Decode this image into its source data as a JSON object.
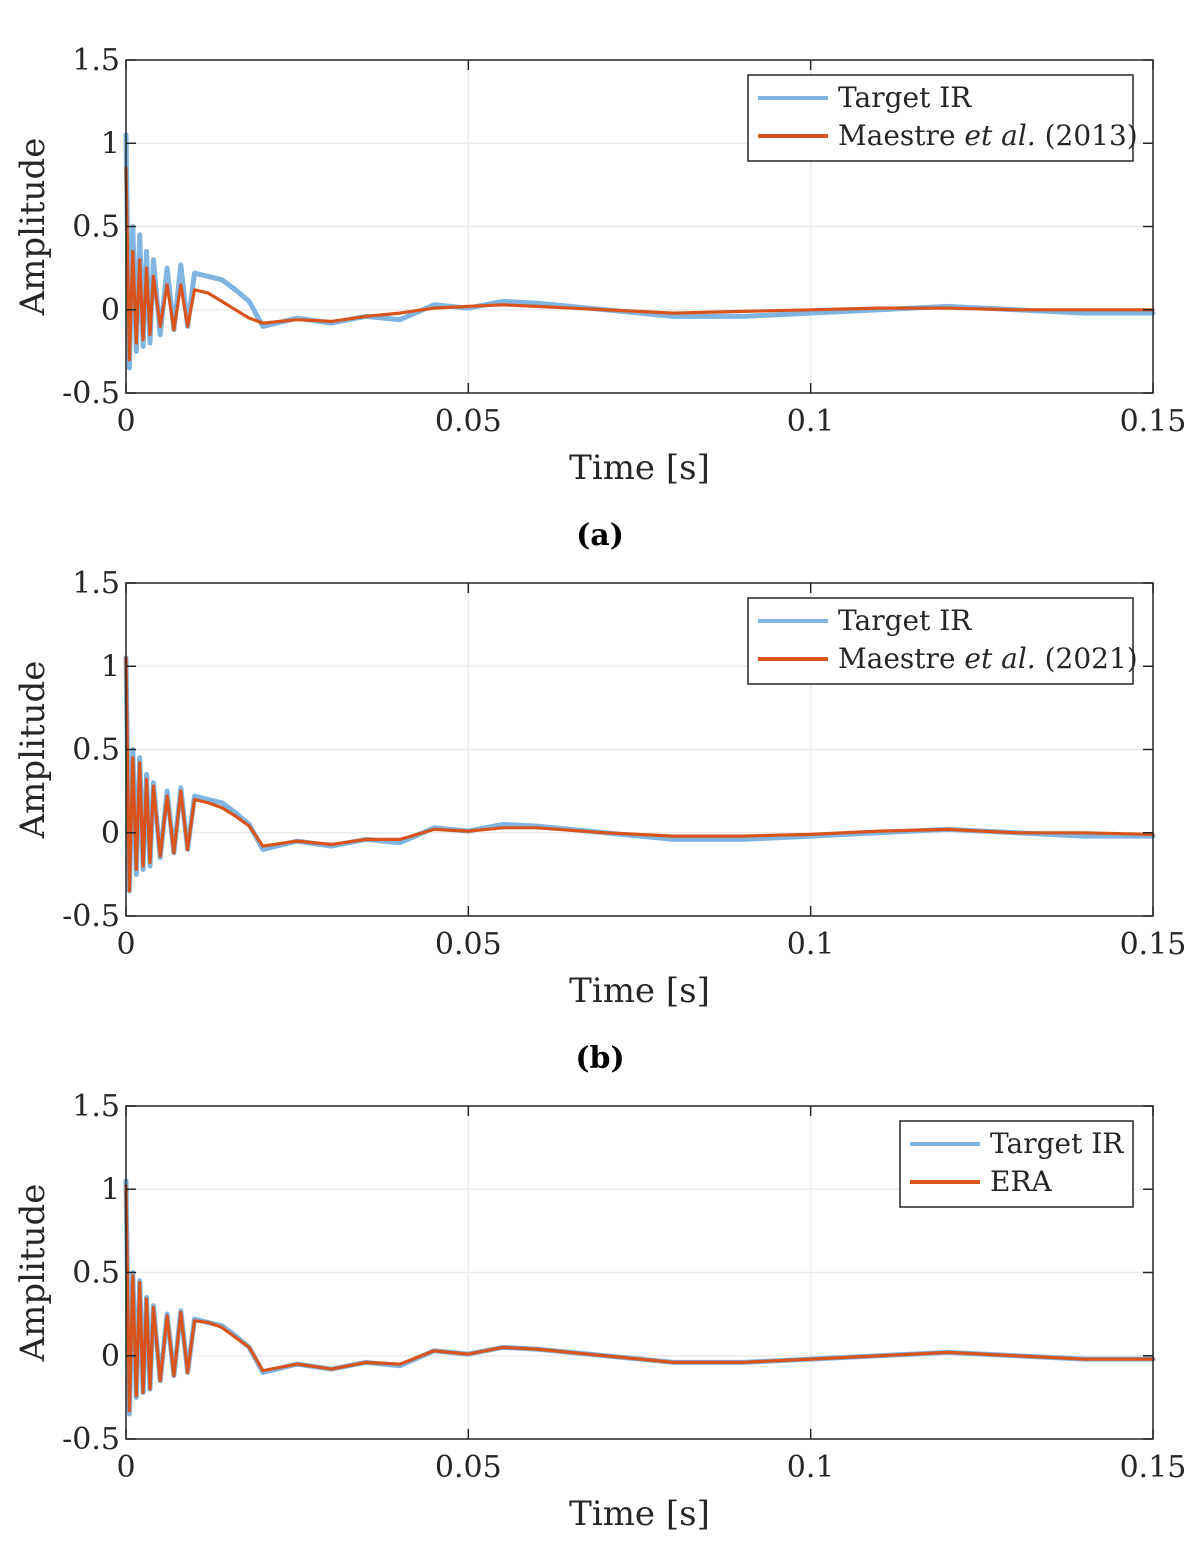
{
  "chart_data": [
    {
      "type": "line",
      "caption": "(a)",
      "xlabel": "Time [s]",
      "ylabel": "Amplitude",
      "xlim": [
        0,
        0.15
      ],
      "ylim": [
        -0.5,
        1.5
      ],
      "xticks": [
        "0",
        "0.05",
        "0.1",
        "0.15"
      ],
      "yticks": [
        "-0.5",
        "0",
        "0.5",
        "1",
        "1.5"
      ],
      "grid": true,
      "legend_position": "top-right",
      "series": [
        {
          "name": "Target IR",
          "color": "#7fb5e0",
          "x": [
            0,
            0.0005,
            0.001,
            0.0015,
            0.002,
            0.0025,
            0.003,
            0.0035,
            0.004,
            0.005,
            0.006,
            0.007,
            0.008,
            0.009,
            0.01,
            0.012,
            0.014,
            0.016,
            0.018,
            0.02,
            0.025,
            0.03,
            0.035,
            0.04,
            0.045,
            0.05,
            0.055,
            0.06,
            0.07,
            0.08,
            0.09,
            0.1,
            0.11,
            0.12,
            0.13,
            0.14,
            0.15
          ],
          "y": [
            1.05,
            -0.35,
            0.5,
            -0.25,
            0.45,
            -0.22,
            0.35,
            -0.2,
            0.3,
            -0.15,
            0.25,
            -0.12,
            0.27,
            -0.1,
            0.22,
            0.2,
            0.18,
            0.12,
            0.05,
            -0.1,
            -0.05,
            -0.08,
            -0.04,
            -0.06,
            0.03,
            0.01,
            0.05,
            0.04,
            0.0,
            -0.04,
            -0.04,
            -0.02,
            0.0,
            0.02,
            0.0,
            -0.02,
            -0.02
          ]
        },
        {
          "name": "Maestre et al. (2013)",
          "color": "#d9541c",
          "x": [
            0,
            0.0005,
            0.001,
            0.0015,
            0.002,
            0.0025,
            0.003,
            0.0035,
            0.004,
            0.005,
            0.006,
            0.007,
            0.008,
            0.009,
            0.01,
            0.012,
            0.014,
            0.016,
            0.018,
            0.02,
            0.025,
            0.03,
            0.035,
            0.04,
            0.045,
            0.05,
            0.055,
            0.06,
            0.07,
            0.08,
            0.09,
            0.1,
            0.11,
            0.12,
            0.13,
            0.14,
            0.15
          ],
          "y": [
            0.85,
            -0.3,
            0.35,
            -0.2,
            0.3,
            -0.18,
            0.25,
            -0.15,
            0.2,
            -0.1,
            0.15,
            -0.12,
            0.15,
            -0.1,
            0.12,
            0.1,
            0.05,
            0.0,
            -0.05,
            -0.08,
            -0.06,
            -0.07,
            -0.04,
            -0.02,
            0.01,
            0.02,
            0.03,
            0.02,
            0.0,
            -0.02,
            -0.01,
            0.0,
            0.01,
            0.01,
            0.0,
            0.0,
            0.0
          ]
        }
      ]
    },
    {
      "type": "line",
      "caption": "(b)",
      "xlabel": "Time [s]",
      "ylabel": "Amplitude",
      "xlim": [
        0,
        0.15
      ],
      "ylim": [
        -0.5,
        1.5
      ],
      "xticks": [
        "0",
        "0.05",
        "0.1",
        "0.15"
      ],
      "yticks": [
        "-0.5",
        "0",
        "0.5",
        "1",
        "1.5"
      ],
      "grid": true,
      "legend_position": "top-right",
      "series": [
        {
          "name": "Target IR",
          "color": "#7fb5e0",
          "x": [
            0,
            0.0005,
            0.001,
            0.0015,
            0.002,
            0.0025,
            0.003,
            0.0035,
            0.004,
            0.005,
            0.006,
            0.007,
            0.008,
            0.009,
            0.01,
            0.012,
            0.014,
            0.016,
            0.018,
            0.02,
            0.025,
            0.03,
            0.035,
            0.04,
            0.045,
            0.05,
            0.055,
            0.06,
            0.07,
            0.08,
            0.09,
            0.1,
            0.11,
            0.12,
            0.13,
            0.14,
            0.15
          ],
          "y": [
            1.05,
            -0.35,
            0.5,
            -0.25,
            0.45,
            -0.22,
            0.35,
            -0.2,
            0.3,
            -0.15,
            0.25,
            -0.12,
            0.27,
            -0.1,
            0.22,
            0.2,
            0.18,
            0.12,
            0.05,
            -0.1,
            -0.05,
            -0.08,
            -0.04,
            -0.06,
            0.03,
            0.01,
            0.05,
            0.04,
            0.0,
            -0.04,
            -0.04,
            -0.02,
            0.0,
            0.02,
            0.0,
            -0.02,
            -0.02
          ]
        },
        {
          "name": "Maestre et al. (2021)",
          "color": "#d9541c",
          "x": [
            0,
            0.0005,
            0.001,
            0.0015,
            0.002,
            0.0025,
            0.003,
            0.0035,
            0.004,
            0.005,
            0.006,
            0.007,
            0.008,
            0.009,
            0.01,
            0.012,
            0.014,
            0.016,
            0.018,
            0.02,
            0.025,
            0.03,
            0.035,
            0.04,
            0.045,
            0.05,
            0.055,
            0.06,
            0.07,
            0.08,
            0.09,
            0.1,
            0.11,
            0.12,
            0.13,
            0.14,
            0.15
          ],
          "y": [
            1.05,
            -0.35,
            0.45,
            -0.22,
            0.42,
            -0.2,
            0.32,
            -0.18,
            0.28,
            -0.14,
            0.22,
            -0.12,
            0.25,
            -0.1,
            0.2,
            0.18,
            0.15,
            0.1,
            0.04,
            -0.08,
            -0.05,
            -0.07,
            -0.04,
            -0.04,
            0.02,
            0.01,
            0.03,
            0.03,
            0.0,
            -0.02,
            -0.02,
            -0.01,
            0.01,
            0.02,
            0.0,
            0.0,
            -0.01
          ]
        }
      ]
    },
    {
      "type": "line",
      "caption": "",
      "xlabel": "Time [s]",
      "ylabel": "Amplitude",
      "xlim": [
        0,
        0.15
      ],
      "ylim": [
        -0.5,
        1.5
      ],
      "xticks": [
        "0",
        "0.05",
        "0.1",
        "0.15"
      ],
      "yticks": [
        "-0.5",
        "0",
        "0.5",
        "1",
        "1.5"
      ],
      "grid": true,
      "legend_position": "top-right",
      "series": [
        {
          "name": "Target IR",
          "color": "#7fb5e0",
          "x": [
            0,
            0.0005,
            0.001,
            0.0015,
            0.002,
            0.0025,
            0.003,
            0.0035,
            0.004,
            0.005,
            0.006,
            0.007,
            0.008,
            0.009,
            0.01,
            0.012,
            0.014,
            0.016,
            0.018,
            0.02,
            0.025,
            0.03,
            0.035,
            0.04,
            0.045,
            0.05,
            0.055,
            0.06,
            0.07,
            0.08,
            0.09,
            0.1,
            0.11,
            0.12,
            0.13,
            0.14,
            0.15
          ],
          "y": [
            1.05,
            -0.35,
            0.5,
            -0.25,
            0.45,
            -0.22,
            0.35,
            -0.2,
            0.3,
            -0.15,
            0.25,
            -0.12,
            0.27,
            -0.1,
            0.22,
            0.2,
            0.18,
            0.12,
            0.05,
            -0.1,
            -0.05,
            -0.08,
            -0.04,
            -0.06,
            0.03,
            0.01,
            0.05,
            0.04,
            0.0,
            -0.04,
            -0.04,
            -0.02,
            0.0,
            0.02,
            0.0,
            -0.02,
            -0.02
          ]
        },
        {
          "name": "ERA",
          "color": "#d9541c",
          "x": [
            0,
            0.0005,
            0.001,
            0.0015,
            0.002,
            0.0025,
            0.003,
            0.0035,
            0.004,
            0.005,
            0.006,
            0.007,
            0.008,
            0.009,
            0.01,
            0.012,
            0.014,
            0.016,
            0.018,
            0.02,
            0.025,
            0.03,
            0.035,
            0.04,
            0.045,
            0.05,
            0.055,
            0.06,
            0.07,
            0.08,
            0.09,
            0.1,
            0.11,
            0.12,
            0.13,
            0.14,
            0.15
          ],
          "y": [
            1.02,
            -0.33,
            0.48,
            -0.24,
            0.44,
            -0.22,
            0.34,
            -0.2,
            0.29,
            -0.15,
            0.24,
            -0.12,
            0.26,
            -0.1,
            0.21,
            0.2,
            0.17,
            0.11,
            0.05,
            -0.09,
            -0.05,
            -0.08,
            -0.04,
            -0.05,
            0.03,
            0.01,
            0.05,
            0.04,
            0.0,
            -0.04,
            -0.04,
            -0.02,
            0.0,
            0.02,
            0.0,
            -0.02,
            -0.02
          ]
        }
      ]
    }
  ]
}
